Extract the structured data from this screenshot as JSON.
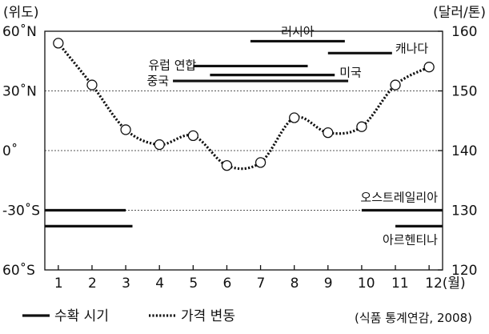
{
  "chart_data": {
    "type": "line",
    "left_axis": {
      "unit": "(위도)",
      "range": [
        -60,
        60
      ],
      "ticks": [
        {
          "value": 60,
          "label": "60˚N"
        },
        {
          "value": 30,
          "label": "30˚N"
        },
        {
          "value": 0,
          "label": "0˚"
        },
        {
          "value": -30,
          "label": "-30˚S"
        },
        {
          "value": -60,
          "label": "60˚S"
        }
      ]
    },
    "right_axis": {
      "unit": "(달러/톤)",
      "range": [
        120,
        160
      ],
      "ticks": [
        {
          "value": 160,
          "label": "160"
        },
        {
          "value": 150,
          "label": "150"
        },
        {
          "value": 140,
          "label": "140"
        },
        {
          "value": 130,
          "label": "130"
        },
        {
          "value": 120,
          "label": "120"
        }
      ]
    },
    "x_axis": {
      "range": [
        0.6,
        12.4
      ],
      "ticks": [
        "1",
        "2",
        "3",
        "4",
        "5",
        "6",
        "7",
        "8",
        "9",
        "10",
        "11",
        "12(월)"
      ]
    },
    "grid_lines_at_latitude": [
      30,
      0,
      -30
    ],
    "price_series": {
      "name": "가격 변동",
      "x": [
        1,
        2,
        3,
        4,
        5,
        6,
        7,
        8,
        9,
        10,
        11,
        12
      ],
      "y": [
        158,
        151,
        143.5,
        141,
        142.5,
        137.5,
        138,
        145.5,
        143,
        144,
        151,
        154
      ]
    },
    "harvest_periods": [
      {
        "label": "러시아",
        "segments": [
          [
            6.7,
            9.5
          ]
        ],
        "latitude": 55
      },
      {
        "label": "캐나다",
        "segments": [
          [
            9.0,
            10.9
          ]
        ],
        "latitude": 49
      },
      {
        "label": "유럽 연합",
        "segments": [
          [
            5.0,
            8.4
          ]
        ],
        "latitude": 42.5
      },
      {
        "label": "미국",
        "segments": [
          [
            5.5,
            9.2
          ]
        ],
        "latitude": 38
      },
      {
        "label": "중국",
        "segments": [
          [
            4.4,
            9.6
          ]
        ],
        "latitude": 35
      },
      {
        "label": "오스트레일리아",
        "segments": [
          [
            0.6,
            3.0
          ],
          [
            10.0,
            12.4
          ]
        ],
        "latitude": -30
      },
      {
        "label": "아르헨티나",
        "segments": [
          [
            0.6,
            3.2
          ],
          [
            11.0,
            12.4
          ]
        ],
        "latitude": -38
      }
    ],
    "legend": [
      {
        "style": "solid",
        "label": "수확 시기"
      },
      {
        "style": "dotted",
        "label": "가격 변동"
      }
    ],
    "source": "(식품 통계연감, 2008)"
  }
}
